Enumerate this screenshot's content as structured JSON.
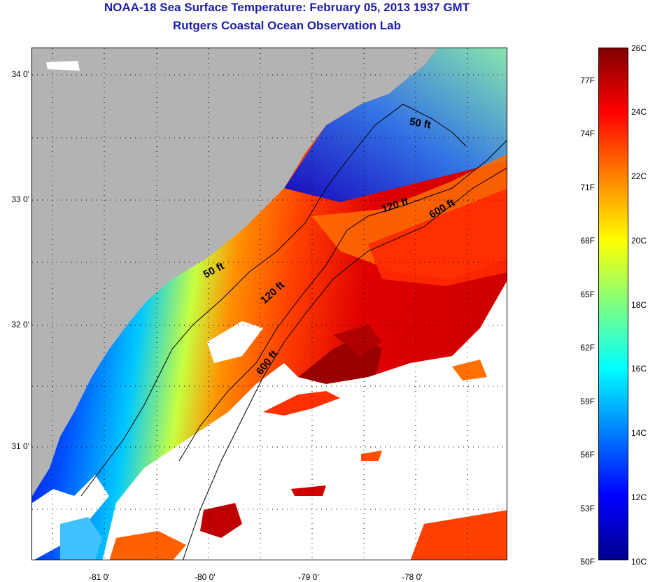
{
  "header": {
    "title": "NOAA-18 Sea Surface Temperature:  February 05, 2013 1937 GMT",
    "subtitle": "Rutgers Coastal Ocean Observation Lab"
  },
  "map": {
    "lat_labels": [
      "34 0'",
      "33 0'",
      "32 0'",
      "31 0'"
    ],
    "lon_labels": [
      "-81 0'",
      "-80 0'",
      "-79 0'",
      "-78 0'"
    ],
    "isobath_labels": [
      "50 ft",
      "50 ft",
      "120 ft",
      "120 ft",
      "600 ft",
      "600 ft"
    ],
    "colors": {
      "land": "#b3b3b3",
      "cloud_nodata": "#ffffff",
      "coast": "#000000"
    }
  },
  "colorbar": {
    "celsius_labels": [
      "26C",
      "24C",
      "22C",
      "20C",
      "18C",
      "16C",
      "14C",
      "12C",
      "10C"
    ],
    "fahrenheit_labels": [
      "77F",
      "74F",
      "71F",
      "68F",
      "65F",
      "62F",
      "59F",
      "56F",
      "53F",
      "50F"
    ],
    "range_c": [
      10,
      26
    ],
    "colormap": "jet"
  }
}
